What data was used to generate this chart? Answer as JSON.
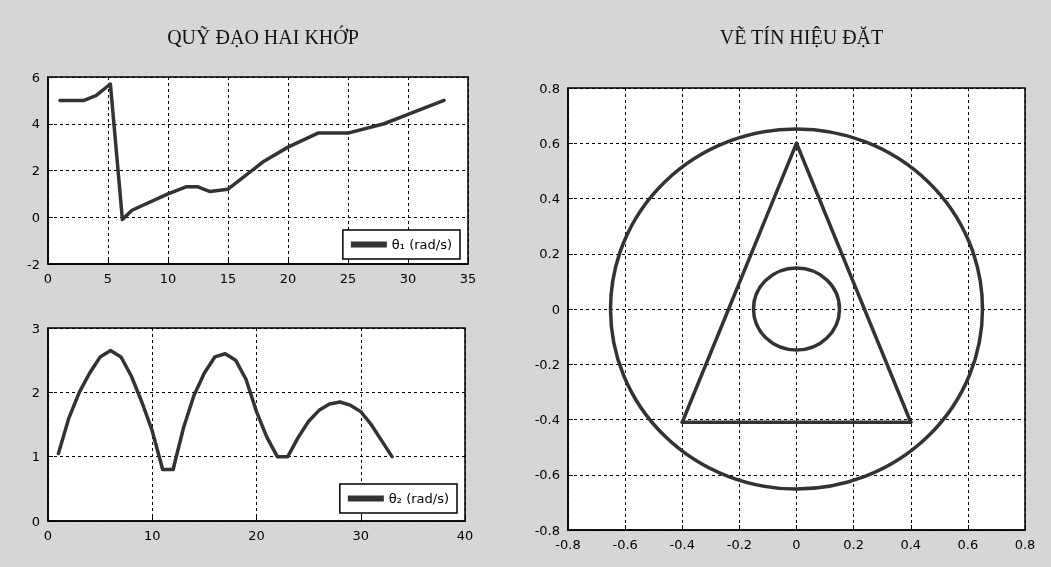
{
  "chart_data": [
    {
      "type": "line",
      "title": "QUỸ ĐẠO HAI KHỚP",
      "xlim": [
        0,
        35
      ],
      "xticks": [
        0,
        5,
        10,
        15,
        20,
        25,
        30,
        35
      ],
      "ylim": [
        -2,
        6
      ],
      "yticks": [
        -2,
        0,
        2,
        4,
        6
      ],
      "grid": true,
      "legend": "bottom right",
      "marker": "none",
      "line_style": "solid",
      "series": [
        {
          "name": "θ₁ (rad/s)",
          "color": "#333333",
          "x": [
            1,
            3,
            4,
            5.2,
            6.2,
            7,
            10,
            11.5,
            12.5,
            13.5,
            15,
            18,
            20,
            22.5,
            25,
            28,
            30,
            33
          ],
          "values": [
            5,
            5,
            5.2,
            5.7,
            -0.1,
            0.3,
            1,
            1.3,
            1.3,
            1.1,
            1.2,
            2.4,
            3,
            3.6,
            3.6,
            4,
            4.4,
            5
          ]
        }
      ]
    },
    {
      "type": "line",
      "xlim": [
        0,
        40
      ],
      "xticks": [
        0,
        10,
        20,
        30,
        40
      ],
      "ylim": [
        0,
        3
      ],
      "yticks": [
        0,
        1,
        2,
        3
      ],
      "grid": true,
      "legend": "bottom right",
      "marker": "none",
      "line_style": "solid",
      "series": [
        {
          "name": "θ₂ (rad/s)",
          "color": "#333333",
          "x": [
            1,
            2,
            3,
            4,
            5,
            6,
            7,
            8,
            9,
            10,
            11,
            12,
            13,
            14,
            15,
            16,
            17,
            18,
            19,
            20,
            21,
            22,
            23,
            24,
            25,
            26,
            27,
            28,
            29,
            30,
            31,
            32,
            33
          ],
          "values": [
            1.05,
            1.6,
            2,
            2.3,
            2.55,
            2.65,
            2.55,
            2.25,
            1.85,
            1.4,
            0.8,
            0.8,
            1.45,
            1.95,
            2.3,
            2.55,
            2.6,
            2.5,
            2.2,
            1.7,
            1.3,
            1,
            1,
            1.3,
            1.55,
            1.72,
            1.82,
            1.85,
            1.8,
            1.7,
            1.5,
            1.25,
            1
          ]
        }
      ]
    },
    {
      "type": "line",
      "title": "VẼ TÍN HIỆU ĐẶT",
      "xlim": [
        -0.8,
        0.8
      ],
      "xticks": [
        -0.8,
        -0.6,
        -0.4,
        -0.2,
        0,
        0.2,
        0.4,
        0.6,
        0.8
      ],
      "ylim": [
        -0.8,
        0.8
      ],
      "yticks": [
        -0.8,
        -0.6,
        -0.4,
        -0.2,
        0,
        0.2,
        0.4,
        0.6,
        0.8
      ],
      "grid": true,
      "marker": "none",
      "line_style": "solid",
      "series": [
        {
          "color": "#333333",
          "x": [
            -0.4,
            0
          ],
          "values": [
            -0.41,
            0.6
          ]
        },
        {
          "color": "#333333",
          "x": [
            0,
            0.4
          ],
          "values": [
            0.6,
            -0.41
          ]
        },
        {
          "color": "#333333",
          "x": [
            -0.4,
            0.4
          ],
          "values": [
            -0.41,
            -0.41
          ]
        }
      ]
    }
  ]
}
